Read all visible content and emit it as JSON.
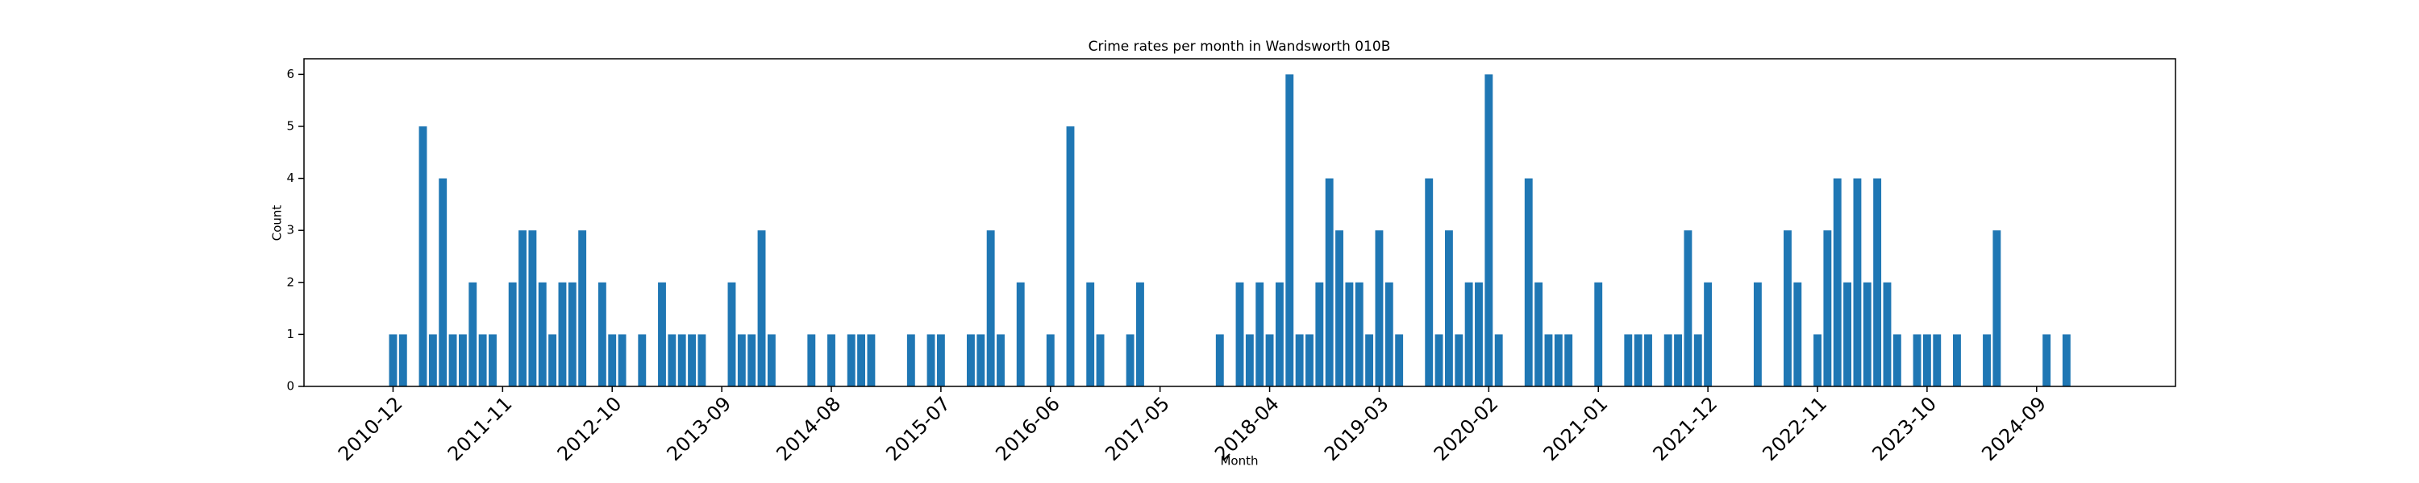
{
  "chart_data": {
    "type": "bar",
    "title": "Crime rates per month in Wandsworth 010B",
    "x_label": "Month",
    "y_label": "Count",
    "color": "#1f77b4",
    "categories": [
      "2010-12",
      null,
      null,
      null,
      null,
      null,
      null,
      null,
      null,
      null,
      null,
      "2011-11",
      null,
      null,
      null,
      null,
      null,
      null,
      null,
      null,
      null,
      null,
      "2012-10",
      null,
      null,
      null,
      null,
      null,
      null,
      null,
      null,
      null,
      null,
      "2013-09",
      null,
      null,
      null,
      null,
      null,
      null,
      null,
      null,
      null,
      null,
      "2014-08",
      null,
      null,
      null,
      null,
      null,
      null,
      null,
      null,
      null,
      null,
      "2015-07",
      null,
      null,
      null,
      null,
      null,
      null,
      null,
      null,
      null,
      null,
      "2016-06",
      null,
      null,
      null,
      null,
      null,
      null,
      null,
      null,
      null,
      null,
      "2017-05",
      null,
      null,
      null,
      null,
      null,
      null,
      null,
      null,
      null,
      null,
      "2018-04",
      null,
      null,
      null,
      null,
      null,
      null,
      null,
      null,
      null,
      null,
      "2019-03",
      null,
      null,
      null,
      null,
      null,
      null,
      null,
      null,
      null,
      null,
      "2020-02",
      null,
      null,
      null,
      null,
      null,
      null,
      null,
      null,
      null,
      null,
      "2021-01",
      null,
      null,
      null,
      null,
      null,
      null,
      null,
      null,
      null,
      null,
      "2021-12",
      null,
      null,
      null,
      null,
      null,
      null,
      null,
      null,
      null,
      null,
      "2022-11",
      null,
      null,
      null,
      null,
      null,
      null,
      null,
      null,
      null,
      null,
      "2023-10",
      null,
      null,
      null,
      null,
      null,
      null,
      null,
      null,
      null,
      null,
      "2024-09",
      null,
      null,
      null,
      null,
      null
    ],
    "values": [
      1,
      1,
      0,
      5,
      1,
      4,
      1,
      1,
      2,
      1,
      1,
      0,
      2,
      3,
      3,
      2,
      1,
      2,
      2,
      3,
      0,
      2,
      1,
      1,
      0,
      1,
      0,
      2,
      1,
      1,
      1,
      1,
      0,
      0,
      2,
      1,
      1,
      3,
      1,
      0,
      0,
      0,
      1,
      0,
      1,
      0,
      1,
      1,
      1,
      0,
      0,
      0,
      1,
      0,
      1,
      1,
      0,
      0,
      1,
      1,
      3,
      1,
      0,
      2,
      0,
      0,
      1,
      0,
      5,
      0,
      2,
      1,
      0,
      0,
      1,
      2,
      0,
      0,
      0,
      0,
      0,
      0,
      0,
      1,
      0,
      2,
      1,
      2,
      1,
      2,
      6,
      1,
      1,
      2,
      4,
      3,
      2,
      2,
      1,
      3,
      2,
      1,
      0,
      0,
      4,
      1,
      3,
      1,
      2,
      2,
      6,
      1,
      0,
      0,
      4,
      2,
      1,
      1,
      1,
      0,
      0,
      2,
      0,
      0,
      1,
      1,
      1,
      0,
      1,
      1,
      3,
      1,
      2,
      0,
      0,
      0,
      0,
      2,
      0,
      0,
      3,
      2,
      0,
      1,
      3,
      4,
      2,
      4,
      2,
      4,
      2,
      1,
      0,
      1,
      1,
      1,
      0,
      1,
      0,
      0,
      1,
      3,
      0,
      0,
      0,
      0,
      1,
      0,
      1,
      0,
      0
    ],
    "ylim": [
      0,
      6.3
    ],
    "yticks": [
      0,
      1,
      2,
      3,
      4,
      5,
      6
    ]
  }
}
